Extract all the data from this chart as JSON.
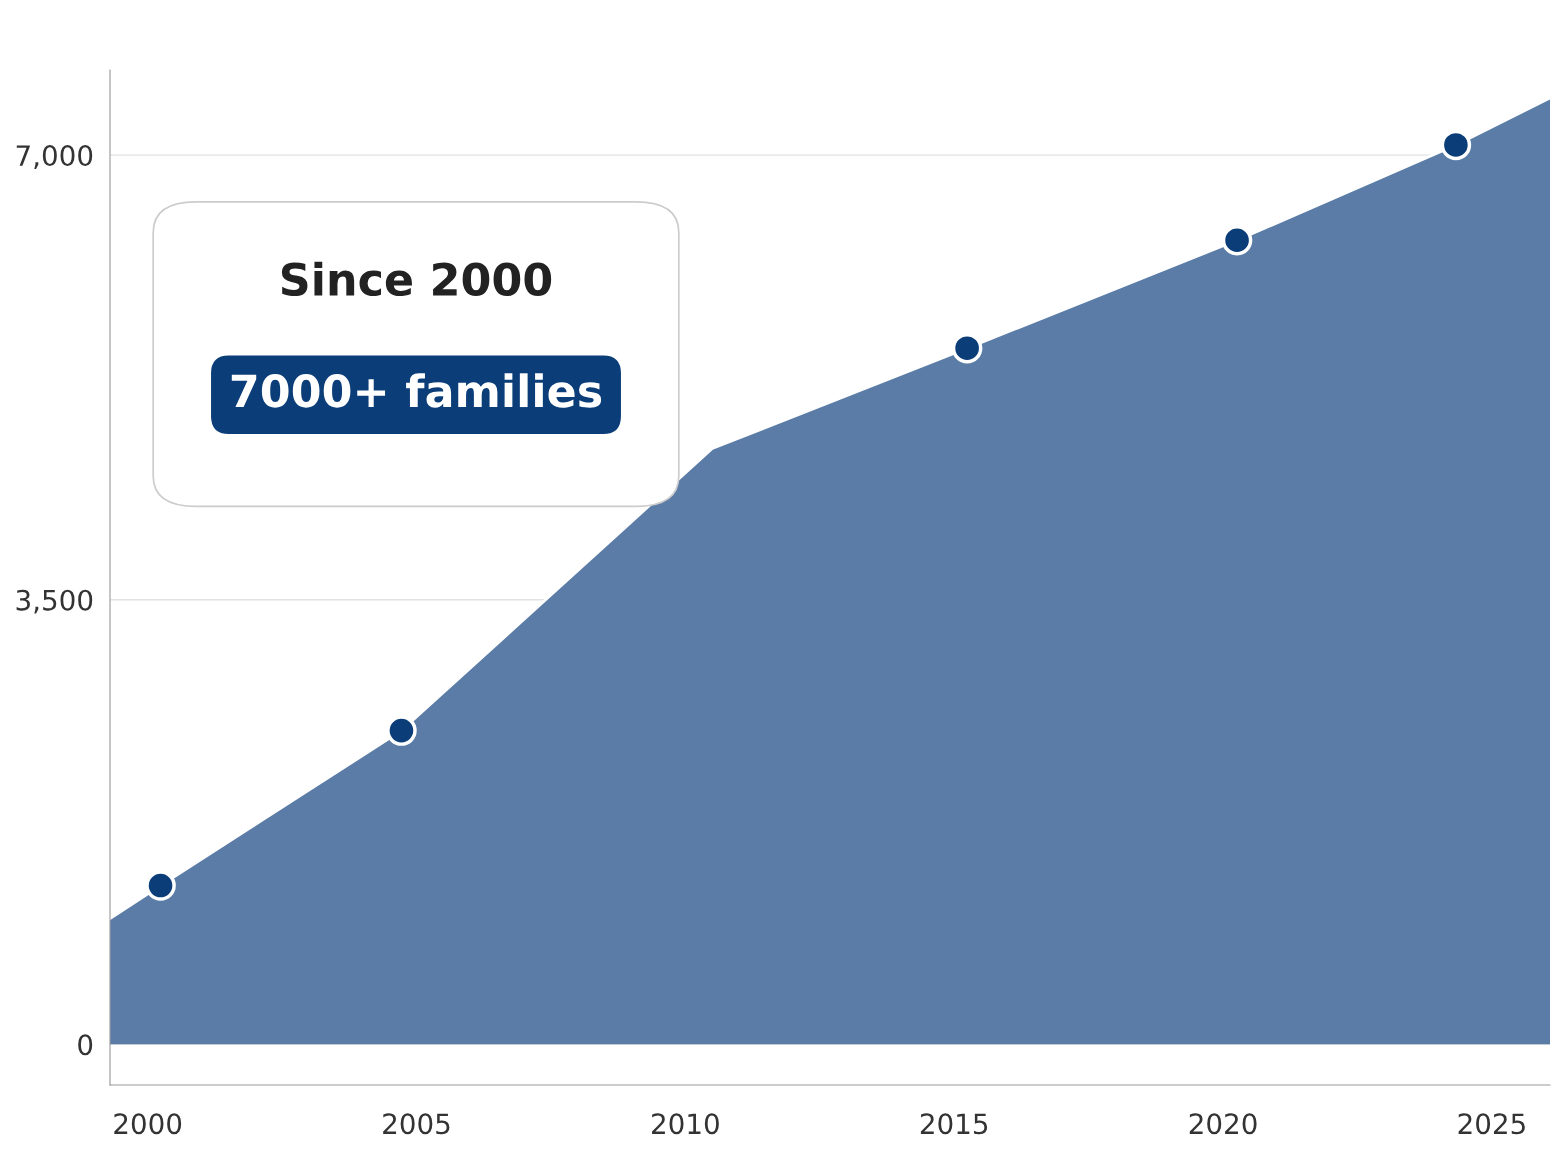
{
  "chart_data": {
    "type": "area",
    "annotations": [
      "Since 2000",
      "7000+ families"
    ],
    "series": [
      {
        "color": "#5a7ca6",
        "x": [
          1999.3,
          2000.24,
          2004.72,
          2010.5,
          2015.24,
          2020.26,
          2024.33,
          2026.08
        ],
        "values": [
          990,
          1250,
          2470,
          4690,
          5480,
          6330,
          7080,
          7450
        ]
      },
      {
        "type": "scatter",
        "color": "#0b3d78",
        "marker": "circle",
        "x": [
          2000.24,
          2004.72,
          2015.24,
          2020.26,
          2024.33
        ],
        "values": [
          1250,
          2470,
          5480,
          6330,
          7080
        ]
      }
    ],
    "xlim": [
      1999.3,
      2026.08
    ],
    "ylim": [
      -320,
      7670
    ],
    "xticks": [
      2000,
      2005,
      2010,
      2015,
      2020,
      2025
    ],
    "yticks": [
      0,
      {
        "value": 3500,
        "label": "3,500"
      },
      {
        "value": 7000,
        "label": "7,000"
      }
    ],
    "grid": "y"
  }
}
